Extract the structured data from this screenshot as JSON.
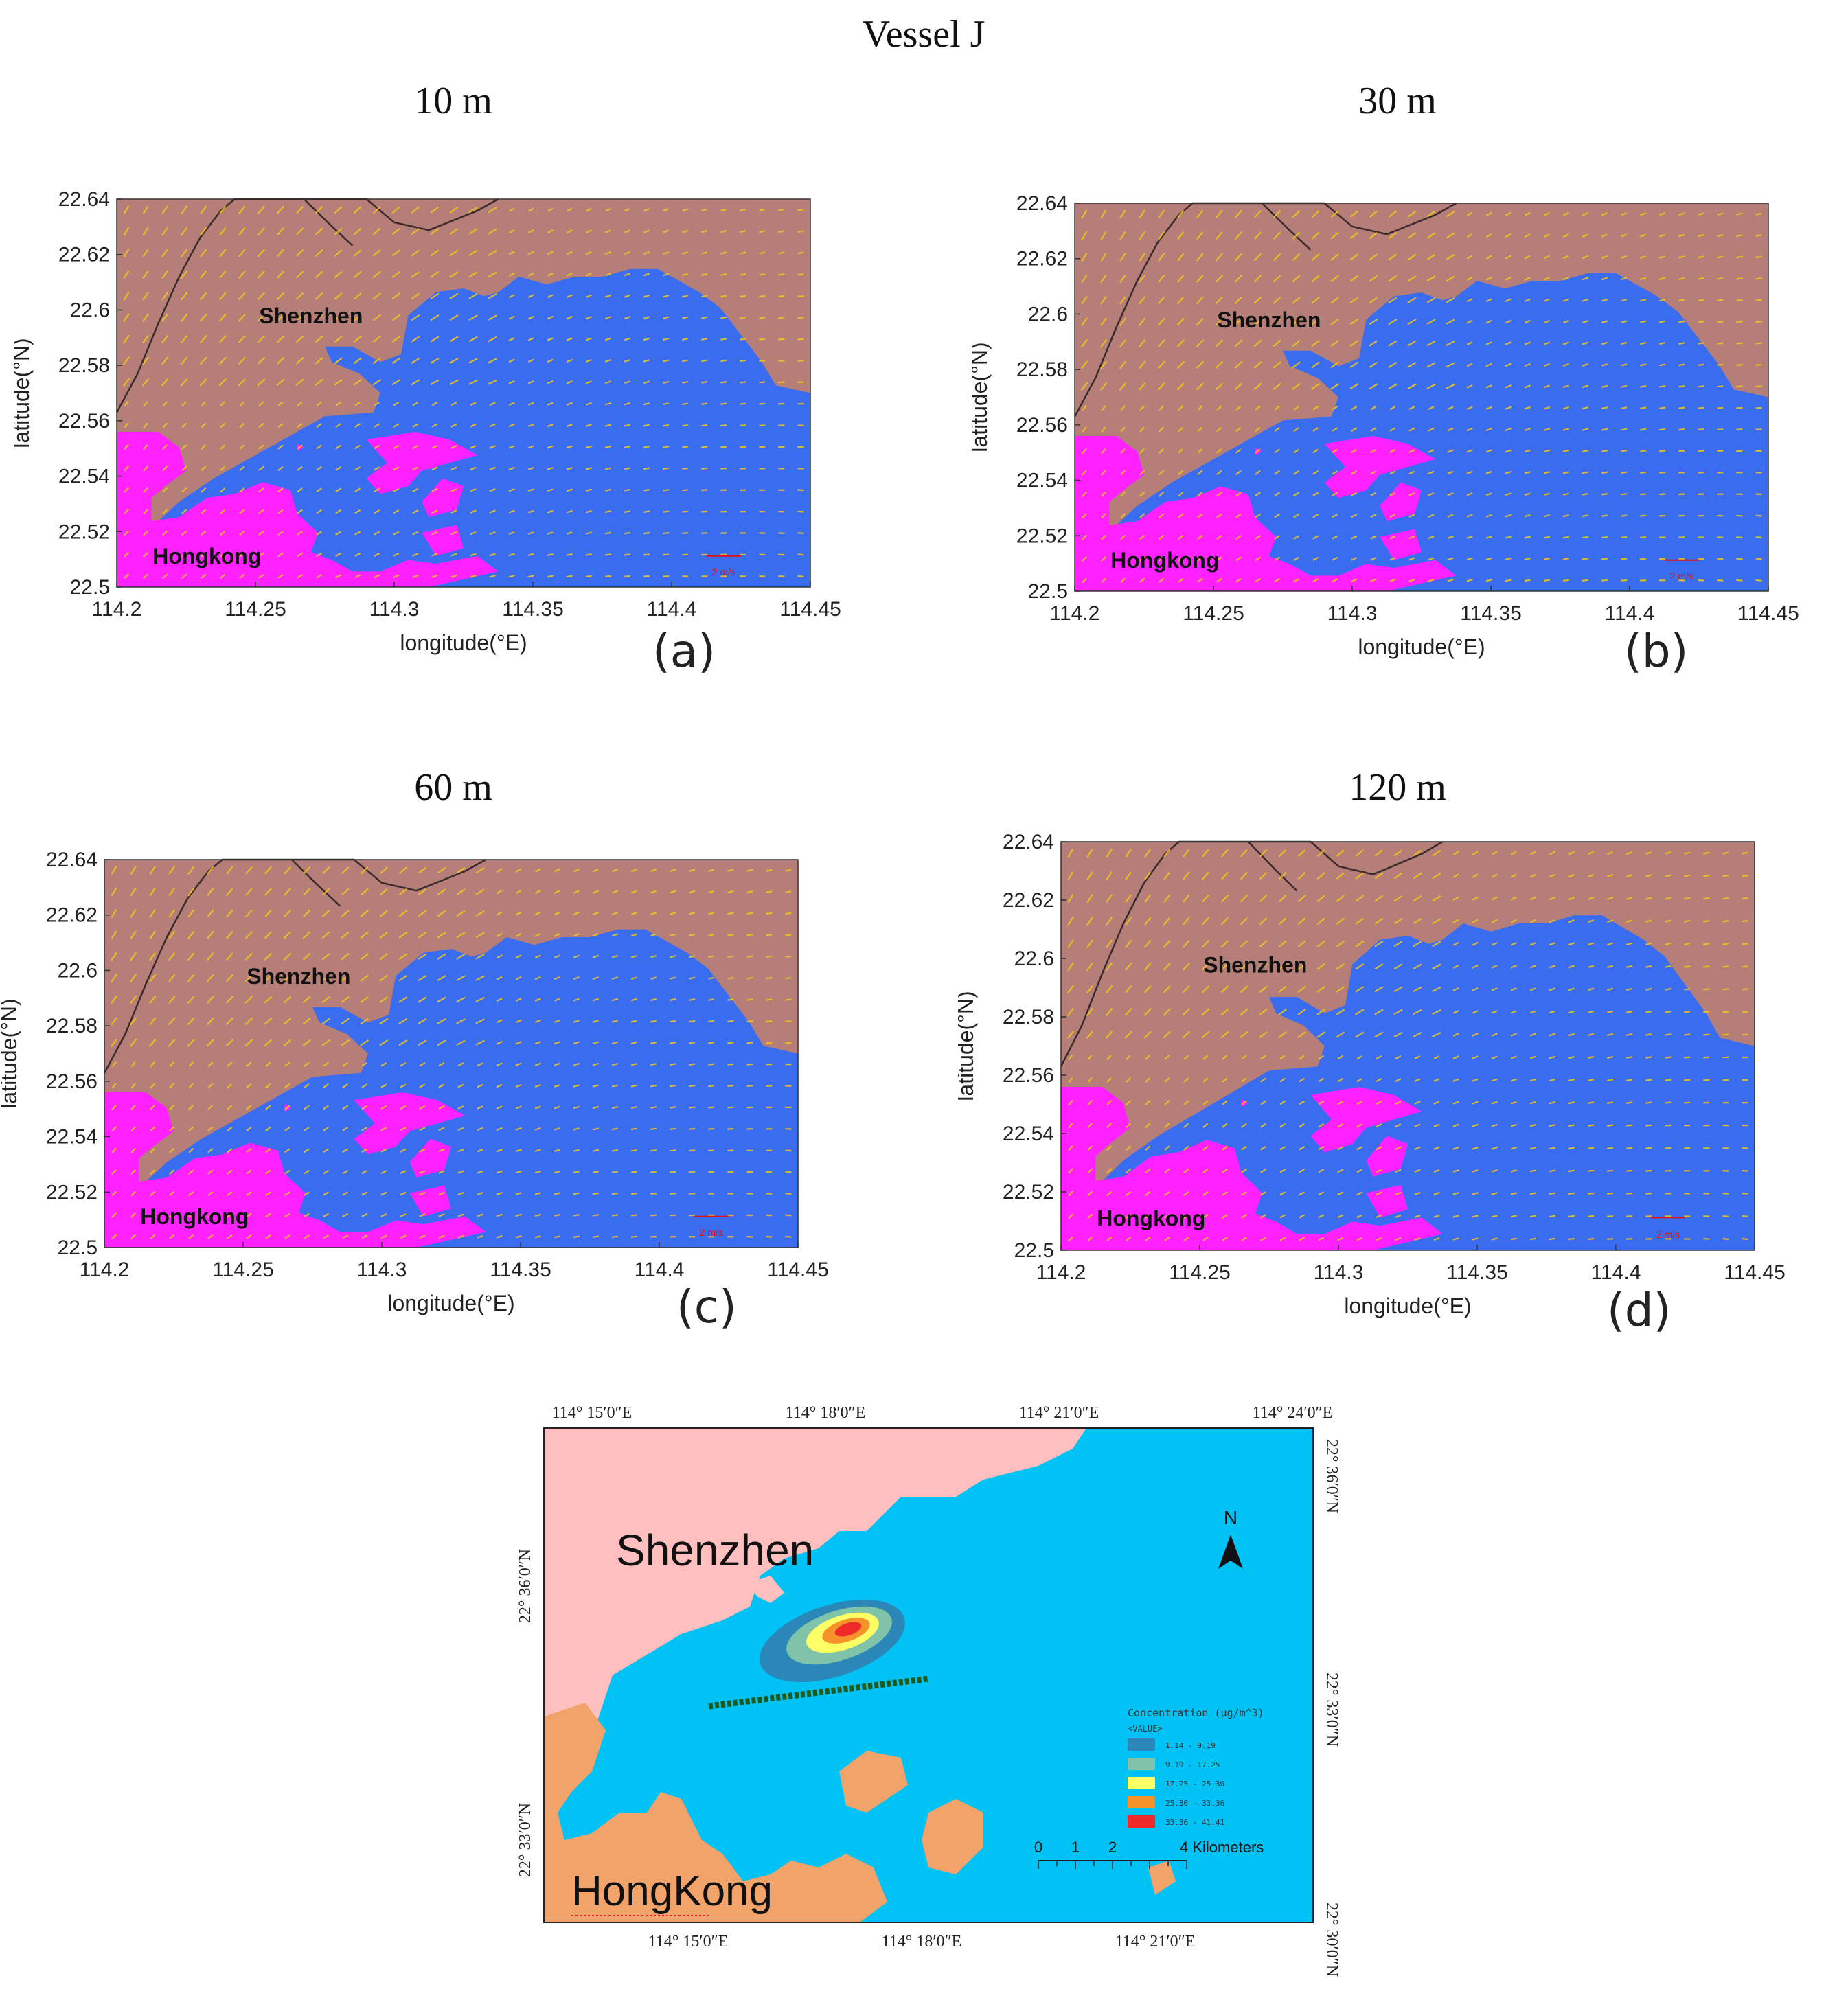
{
  "figure_title": "Vessel J",
  "panels": [
    {
      "letter": "(a)",
      "height_label": "10 m"
    },
    {
      "letter": "(b)",
      "height_label": "30 m"
    },
    {
      "letter": "(c)",
      "height_label": "60 m"
    },
    {
      "letter": "(d)",
      "height_label": "120 m"
    }
  ],
  "wind_map": {
    "x_axis_label": "longitude(°E)",
    "y_axis_label": "latitude(°N)",
    "x_ticks": [
      "114.2",
      "114.25",
      "114.3",
      "114.35",
      "114.4",
      "114.45"
    ],
    "y_ticks": [
      "22.5",
      "22.52",
      "22.54",
      "22.56",
      "22.58",
      "22.6",
      "22.62",
      "22.64"
    ],
    "x_range": [
      114.2,
      114.45
    ],
    "y_range": [
      22.5,
      22.64
    ],
    "place_north": "Shenzhen",
    "place_south": "Hongkong",
    "scale_label": "2 m/s",
    "colors": {
      "shenzhen_land": "#b57e79",
      "hongkong_land": "#ff21ff",
      "sea": "#3a6cf0",
      "wind_vector": "#f5c518",
      "boundary": "#3a2a2a"
    }
  },
  "concentration_map": {
    "top_ticks": [
      "114° 15′0″E",
      "114° 18′0″E",
      "114° 21′0″E",
      "114° 24′0″E"
    ],
    "bottom_ticks": [
      "114° 15′0″E",
      "114° 18′0″E",
      "114° 21′0″E"
    ],
    "left_ticks": [
      "22° 36′0″N",
      "22° 33′0″N"
    ],
    "right_ticks": [
      "22° 36′0″N",
      "22° 33′0″N",
      "22° 30′0″N"
    ],
    "place_north": "Shenzhen",
    "place_south": "HongKong",
    "north_arrow_label": "N",
    "legend_title": "Concentration (μg/m^3)",
    "legend_subtitle": "<VALUE>",
    "legend": [
      {
        "range": "1.14 - 9.19",
        "color": "#2a87b8"
      },
      {
        "range": "9.19 - 17.25",
        "color": "#7fc3a8"
      },
      {
        "range": "17.25 - 25.30",
        "color": "#ffff66"
      },
      {
        "range": "25.30 - 33.36",
        "color": "#f5922a"
      },
      {
        "range": "33.36 - 41.41",
        "color": "#ee2a2a"
      }
    ],
    "scale_labels": [
      "0",
      "1",
      "2",
      "4 Kilometers"
    ],
    "colors": {
      "shenzhen_land": "#ffbfbf",
      "hongkong_land": "#f2a36a",
      "sea": "#00c2f5"
    }
  }
}
